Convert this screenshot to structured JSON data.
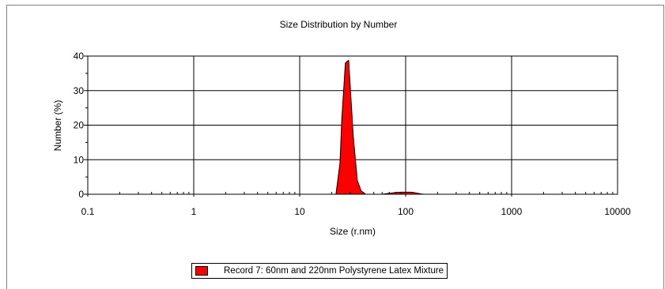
{
  "chart_data": {
    "type": "area",
    "title": "Size Distribution by Number",
    "xlabel": "Size (r.nm)",
    "ylabel": "Number (%)",
    "x_scale": "log",
    "xlim": [
      0.1,
      10000
    ],
    "ylim": [
      0,
      40
    ],
    "x_ticks": [
      "0.1",
      "1",
      "10",
      "100",
      "1000",
      "10000"
    ],
    "y_ticks": [
      "0",
      "10",
      "20",
      "30",
      "40"
    ],
    "grid": true,
    "legend_position": "bottom",
    "series": [
      {
        "name": "Record 7: 60nm and 220nm Polystyrene Latex Mixture",
        "color": "#ff0000",
        "x": [
          0.2,
          21,
          22,
          24,
          25,
          27,
          29,
          32,
          35,
          38,
          42,
          46,
          50,
          60,
          70,
          80,
          90,
          100,
          110,
          120,
          130,
          140,
          150
        ],
        "y": [
          0,
          0,
          0,
          9,
          22,
          38,
          38.8,
          17,
          4,
          1,
          0,
          0,
          0,
          0,
          0.3,
          0.5,
          0.6,
          0.6,
          0.6,
          0.5,
          0.3,
          0.1,
          0
        ]
      }
    ]
  }
}
